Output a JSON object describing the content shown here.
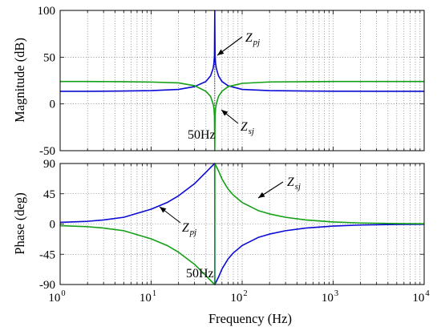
{
  "chart_data": [
    {
      "type": "line",
      "panel": "magnitude",
      "xscale": "log",
      "xlim": [
        1,
        10000
      ],
      "ylim": [
        -50,
        100
      ],
      "ylabel": "Magnitude (dB)",
      "yticks": [
        -50,
        0,
        50,
        100
      ],
      "ytick_labels": [
        "-50",
        "0",
        "50",
        "100"
      ],
      "grid": true,
      "series": [
        {
          "color": "#0a0ad6",
          "x": [
            1,
            2,
            5,
            10,
            20,
            30,
            40,
            45,
            48,
            49,
            49.6,
            50,
            50.4,
            51,
            52,
            55,
            60,
            70,
            100,
            200,
            500,
            1000,
            10000
          ],
          "y": [
            13.5,
            13.5,
            13.8,
            14.2,
            15.5,
            18.5,
            24,
            30,
            38,
            44,
            52,
            100,
            52,
            44,
            38,
            30,
            24,
            19.5,
            15.5,
            14.2,
            13.8,
            13.6,
            13.5
          ]
        },
        {
          "color": "#14a014",
          "x": [
            1,
            2,
            5,
            10,
            20,
            30,
            40,
            45,
            48,
            49,
            49.6,
            50,
            50.4,
            51,
            52,
            55,
            60,
            70,
            100,
            200,
            500,
            1000,
            10000
          ],
          "y": [
            24,
            24,
            23.8,
            23.4,
            22.5,
            19.5,
            13.5,
            8,
            0,
            -5,
            -13,
            -50,
            -13,
            -5,
            0,
            8,
            13.5,
            18.5,
            22,
            23.5,
            23.8,
            24,
            24
          ]
        }
      ],
      "annotations": [
        {
          "base": "Z",
          "sub": "pj",
          "x": 47,
          "y": 48
        },
        {
          "base": "Z",
          "sub": "sj",
          "x": 57,
          "y": -5
        },
        {
          "text": "50Hz",
          "x": 50,
          "y": -35
        }
      ]
    },
    {
      "type": "line",
      "panel": "phase",
      "xscale": "log",
      "xlim": [
        1,
        10000
      ],
      "ylim": [
        -90,
        90
      ],
      "xlabel": "Frequency  (Hz)",
      "ylabel": "Phase (deg)",
      "yticks": [
        -90,
        -45,
        0,
        45,
        90
      ],
      "ytick_labels": [
        "-90",
        "-45",
        "0",
        "45",
        "90"
      ],
      "xticks": [
        {
          "value": 1,
          "base": "10",
          "exp": "0"
        },
        {
          "value": 10,
          "base": "10",
          "exp": "1"
        },
        {
          "value": 100,
          "base": "10",
          "exp": "2"
        },
        {
          "value": 1000,
          "base": "10",
          "exp": "3"
        },
        {
          "value": 10000,
          "base": "10",
          "exp": "4"
        }
      ],
      "grid": true,
      "series": [
        {
          "color": "#0a0ad6",
          "x": [
            1,
            2,
            3,
            5,
            10,
            15,
            20,
            30,
            40,
            45,
            49.9,
            50.1,
            55,
            60,
            70,
            80,
            100,
            150,
            200,
            300,
            500,
            1000,
            2000,
            5000,
            10000
          ],
          "y": [
            2.5,
            4,
            6,
            10,
            22,
            32,
            42,
            60,
            77,
            84,
            90,
            -90,
            -79,
            -67,
            -52,
            -43,
            -32,
            -20,
            -15,
            -10,
            -6,
            -3,
            -1.5,
            -0.7,
            -0.4
          ]
        },
        {
          "color": "#14a014",
          "x": [
            1,
            2,
            3,
            5,
            10,
            15,
            20,
            30,
            40,
            45,
            49.9,
            50.1,
            55,
            60,
            70,
            80,
            100,
            150,
            200,
            300,
            500,
            1000,
            2000,
            5000,
            10000
          ],
          "y": [
            -2.5,
            -4,
            -6,
            -10,
            -22,
            -32,
            -42,
            -60,
            -77,
            -84,
            -90,
            90,
            79,
            67,
            52,
            43,
            32,
            20,
            15,
            10,
            6,
            3,
            1.5,
            0.7,
            0.4
          ]
        }
      ],
      "annotations": [
        {
          "base": "Z",
          "sub": "sj",
          "x": 140,
          "y": 55
        },
        {
          "base": "Z",
          "sub": "pj",
          "x": 20,
          "y": 0
        },
        {
          "text": "50Hz",
          "x": 50,
          "y": -82
        }
      ]
    }
  ]
}
